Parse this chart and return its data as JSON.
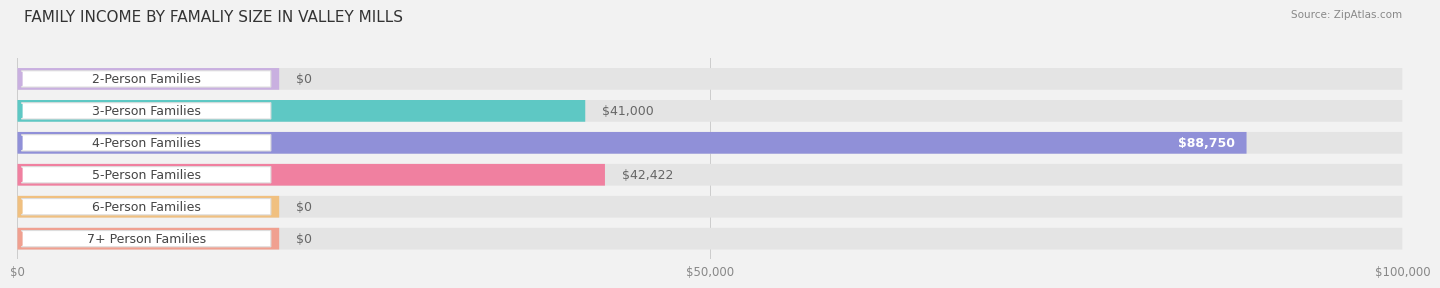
{
  "title": "FAMILY INCOME BY FAMALIY SIZE IN VALLEY MILLS",
  "source": "Source: ZipAtlas.com",
  "categories": [
    "2-Person Families",
    "3-Person Families",
    "4-Person Families",
    "5-Person Families",
    "6-Person Families",
    "7+ Person Families"
  ],
  "values": [
    0,
    41000,
    88750,
    42422,
    0,
    0
  ],
  "bar_colors": [
    "#c9b0e0",
    "#5ec8c4",
    "#9090d8",
    "#f080a0",
    "#f0c080",
    "#f0a090"
  ],
  "value_labels": [
    "$0",
    "$41,000",
    "$88,750",
    "$42,422",
    "$0",
    "$0"
  ],
  "zero_stub_value": 5500,
  "xlim": [
    0,
    100000
  ],
  "xtick_values": [
    0,
    50000,
    100000
  ],
  "xtick_labels": [
    "$0",
    "$50,000",
    "$100,000"
  ],
  "background_color": "#f2f2f2",
  "bar_bg_color": "#e4e4e4",
  "title_fontsize": 11,
  "label_fontsize": 9,
  "value_fontsize": 9,
  "fig_width": 14.06,
  "fig_height": 3.05
}
